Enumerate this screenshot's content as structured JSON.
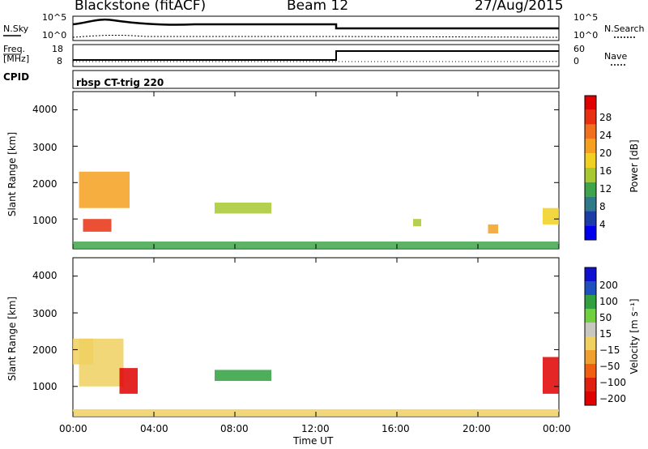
{
  "header": {
    "site": "Blackstone (fitACF)",
    "beam": "Beam 12",
    "date": "27/Aug/2015"
  },
  "noise_panel": {
    "left_label": "N.Sky",
    "right_label": "N.Search",
    "left_ticks": [
      "10^5",
      "10^0"
    ],
    "right_ticks": [
      "10^5",
      "10^0"
    ]
  },
  "freq_panel": {
    "left_label_top": "Freq.",
    "left_label_unit": "[MHz]",
    "right_label": "Nave",
    "left_ticks": [
      "18",
      "8"
    ],
    "right_ticks": [
      "60",
      "0"
    ]
  },
  "cpid_panel": {
    "label": "CPID",
    "text": "rbsp CT-trig 220"
  },
  "power_panel": {
    "ylabel": "Slant Range [km]",
    "yticks": [
      "4000",
      "3000",
      "2000",
      "1000"
    ],
    "colorbar_label": "Power [dB]",
    "colorbar_ticks": [
      "28",
      "24",
      "20",
      "16",
      "12",
      "8",
      "4"
    ],
    "colors": [
      "#0000ee",
      "#1a3da8",
      "#2e7a8a",
      "#3fa54a",
      "#a8c830",
      "#f0d020",
      "#f5a020",
      "#f07020",
      "#e83010",
      "#e00000"
    ]
  },
  "velocity_panel": {
    "ylabel": "Slant Range [km]",
    "yticks": [
      "4000",
      "3000",
      "2000",
      "1000"
    ],
    "colorbar_label": "Velocity [m s⁻¹]",
    "colorbar_ticks": [
      "200",
      "100",
      "50",
      "15",
      "−15",
      "−50",
      "−100",
      "−200"
    ],
    "colors": [
      "#1010d0",
      "#2050c0",
      "#30a040",
      "#70d040",
      "#c8c8c0",
      "#f0d060",
      "#f0a030",
      "#f06010",
      "#e02010",
      "#e00000"
    ]
  },
  "xaxis": {
    "label": "Time UT",
    "ticks": [
      "00:00",
      "04:00",
      "08:00",
      "12:00",
      "16:00",
      "20:00",
      "00:00"
    ]
  },
  "chart_data": [
    {
      "type": "heatmap",
      "title": "Power",
      "x_range_hours": [
        0,
        24
      ],
      "ylim": [
        180,
        4500
      ],
      "z_label": "Power [dB]",
      "z_range": [
        0,
        30
      ],
      "blobs": [
        {
          "t": 0.3,
          "t2": 2.8,
          "r1": 1300,
          "r2": 2300,
          "level": 20
        },
        {
          "t": 0.5,
          "t2": 1.9,
          "r1": 650,
          "r2": 1000,
          "level": 26
        },
        {
          "t": 7.0,
          "t2": 9.8,
          "r1": 1150,
          "r2": 1450,
          "level": 12
        },
        {
          "t": 16.8,
          "t2": 17.2,
          "r1": 800,
          "r2": 1000,
          "level": 12
        },
        {
          "t": 20.5,
          "t2": 21.0,
          "r1": 600,
          "r2": 850,
          "level": 20
        },
        {
          "t": 23.2,
          "t2": 24.0,
          "r1": 850,
          "r2": 1300,
          "level": 16
        },
        {
          "t": 0.0,
          "t2": 24.0,
          "r1": 180,
          "r2": 380,
          "level": 10
        }
      ]
    },
    {
      "type": "heatmap",
      "title": "Velocity",
      "x_range_hours": [
        0,
        24
      ],
      "ylim": [
        180,
        4500
      ],
      "z_label": "Velocity [m s⁻¹]",
      "z_range": [
        -200,
        200
      ],
      "blobs": [
        {
          "t": 0.3,
          "t2": 2.5,
          "r1": 1000,
          "r2": 2300,
          "level": 0
        },
        {
          "t": 0.0,
          "t2": 1.0,
          "r1": 1600,
          "r2": 2300,
          "level": -40
        },
        {
          "t": 2.3,
          "t2": 3.2,
          "r1": 800,
          "r2": 1500,
          "level": -180
        },
        {
          "t": 7.0,
          "t2": 9.8,
          "r1": 1150,
          "r2": 1450,
          "level": 100
        },
        {
          "t": 23.2,
          "t2": 24.0,
          "r1": 800,
          "r2": 1800,
          "level": -180
        },
        {
          "t": 0.0,
          "t2": 24.0,
          "r1": 180,
          "r2": 380,
          "level": -40
        }
      ]
    }
  ]
}
